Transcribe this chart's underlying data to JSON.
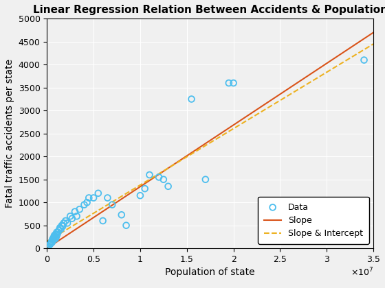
{
  "title": "Linear Regression Relation Between Accidents & Population",
  "xlabel": "Population of state",
  "ylabel": "Fatal traffic accidents per state",
  "xlim": [
    0,
    35000000.0
  ],
  "ylim": [
    0,
    5000
  ],
  "xticks": [
    0,
    5000000,
    10000000,
    15000000,
    20000000,
    25000000,
    30000000,
    35000000
  ],
  "xtick_labels": [
    "0",
    "0.5",
    "1",
    "1.5",
    "2",
    "2.5",
    "3",
    "3.5"
  ],
  "yticks": [
    0,
    500,
    1000,
    1500,
    2000,
    2500,
    3000,
    3500,
    4000,
    4500,
    5000
  ],
  "scatter_x": [
    200000,
    300000,
    400000,
    450000,
    500000,
    550000,
    600000,
    650000,
    700000,
    750000,
    800000,
    850000,
    900000,
    950000,
    1000000,
    1050000,
    1100000,
    1200000,
    1300000,
    1400000,
    1500000,
    1600000,
    1700000,
    1800000,
    2000000,
    2200000,
    2500000,
    2700000,
    3000000,
    3200000,
    3500000,
    4000000,
    4300000,
    4500000,
    5000000,
    5500000,
    6000000,
    6500000,
    7000000,
    8000000,
    8500000,
    10000000,
    10500000,
    11000000,
    12000000,
    12500000,
    13000000,
    15500000,
    17000000,
    19500000,
    20000000,
    34000000
  ],
  "scatter_y": [
    50,
    80,
    100,
    120,
    150,
    130,
    200,
    180,
    220,
    250,
    280,
    200,
    300,
    220,
    250,
    350,
    300,
    350,
    400,
    450,
    420,
    500,
    480,
    550,
    600,
    550,
    700,
    650,
    800,
    700,
    850,
    950,
    1000,
    1100,
    1100,
    1200,
    600,
    1100,
    950,
    730,
    500,
    1150,
    1300,
    1600,
    1550,
    1500,
    1350,
    3250,
    1500,
    3600,
    3600,
    4100
  ],
  "slope_line_x": [
    0,
    35000000
  ],
  "slope_line_y": [
    0,
    4700
  ],
  "slope_intercept_line_x": [
    0,
    35000000
  ],
  "slope_intercept_line_y": [
    150,
    4450
  ],
  "scatter_color": "#4DBEEE",
  "slope_color": "#D95319",
  "slope_intercept_color": "#EDB120",
  "legend_labels": [
    "Data",
    "Slope",
    "Slope & Intercept"
  ],
  "background_color": "#f0f0f0",
  "axes_facecolor": "#f0f0f0",
  "grid_color": "#ffffff"
}
